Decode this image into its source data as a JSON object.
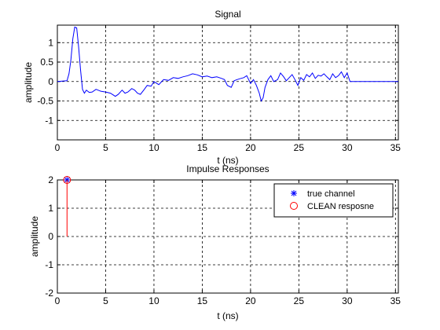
{
  "chart_data": [
    {
      "type": "line",
      "title": "Signal",
      "xlabel": "t (ns)",
      "ylabel": "amplitude",
      "xlim": [
        0,
        35.3
      ],
      "ylim": [
        -1.5,
        1.45
      ],
      "xticks": [
        0,
        5,
        10,
        15,
        20,
        25,
        30,
        35
      ],
      "yticks": [
        -1,
        -0.5,
        0,
        0.5,
        1
      ],
      "xtick_labels": [
        "0",
        "5",
        "10",
        "15",
        "20",
        "25",
        "30",
        "35"
      ],
      "ytick_labels": [
        "-1",
        "-0.5",
        "0",
        "0.5",
        "1"
      ],
      "grid": true,
      "series": [
        {
          "color": "#0000ff",
          "x": [
            0,
            1.0,
            1.2,
            1.4,
            1.6,
            1.8,
            2.0,
            2.2,
            2.4,
            2.6,
            2.8,
            3.0,
            3.3,
            3.6,
            4.0,
            4.5,
            5.0,
            5.5,
            6.0,
            6.3,
            6.7,
            7.0,
            7.3,
            7.7,
            8.0,
            8.3,
            8.6,
            9.0,
            9.3,
            9.7,
            10.0,
            10.5,
            11.0,
            11.5,
            12.0,
            12.5,
            13.0,
            13.5,
            14.0,
            14.5,
            15.0,
            15.5,
            16.0,
            16.5,
            17.0,
            17.3,
            17.6,
            18.0,
            18.3,
            18.6,
            19.0,
            19.3,
            19.6,
            20.0,
            20.3,
            20.6,
            20.9,
            21.1,
            21.3,
            21.5,
            21.8,
            22.1,
            22.4,
            22.8,
            23.1,
            23.4,
            23.7,
            24.0,
            24.3,
            24.6,
            24.9,
            25.2,
            25.5,
            25.8,
            26.1,
            26.4,
            26.7,
            27.0,
            27.3,
            27.6,
            27.9,
            28.2,
            28.5,
            28.8,
            29.1,
            29.4,
            29.7,
            30.0,
            30.3,
            35.3
          ],
          "y": [
            0,
            0.02,
            0.2,
            0.55,
            1.1,
            1.4,
            1.38,
            0.9,
            0.3,
            -0.2,
            -0.3,
            -0.22,
            -0.28,
            -0.27,
            -0.2,
            -0.25,
            -0.27,
            -0.3,
            -0.38,
            -0.33,
            -0.22,
            -0.3,
            -0.27,
            -0.18,
            -0.22,
            -0.3,
            -0.33,
            -0.2,
            -0.1,
            -0.12,
            0.0,
            -0.08,
            0.05,
            0.03,
            0.1,
            0.08,
            0.12,
            0.15,
            0.2,
            0.17,
            0.12,
            0.14,
            0.1,
            0.12,
            0.08,
            0.05,
            -0.1,
            -0.15,
            0.02,
            0.05,
            0.08,
            0.1,
            0.15,
            -0.05,
            0.05,
            -0.1,
            -0.3,
            -0.5,
            -0.42,
            -0.15,
            0.05,
            0.15,
            0.0,
            0.05,
            0.22,
            0.13,
            0.02,
            0.1,
            0.18,
            0.05,
            -0.1,
            0.1,
            0.03,
            0.18,
            0.12,
            0.22,
            0.08,
            0.16,
            0.14,
            0.2,
            0.12,
            0.05,
            0.2,
            0.1,
            0.15,
            0.25,
            0.1,
            0.22,
            0.0,
            0.0
          ]
        }
      ]
    },
    {
      "type": "scatter",
      "title": "Impulse Responses",
      "xlabel": "t (ns)",
      "ylabel": "amplitude",
      "xlim": [
        0,
        35.3
      ],
      "ylim": [
        -2,
        2
      ],
      "xticks": [
        0,
        5,
        10,
        15,
        20,
        25,
        30,
        35
      ],
      "yticks": [
        -2,
        -1,
        0,
        1,
        2
      ],
      "xtick_labels": [
        "0",
        "5",
        "10",
        "15",
        "20",
        "25",
        "30",
        "35"
      ],
      "ytick_labels": [
        "-2",
        "-1",
        "0",
        "1",
        "2"
      ],
      "grid": true,
      "legend_position": "top-right",
      "series": [
        {
          "name": "true channel",
          "marker": "star",
          "color": "#0000ff",
          "x": [
            1.0
          ],
          "y": [
            2.0
          ]
        },
        {
          "name": "CLEAN resposne",
          "marker": "circle",
          "color": "#ff0000",
          "x": [
            1.0
          ],
          "y": [
            2.0
          ],
          "stem": true
        }
      ]
    }
  ]
}
